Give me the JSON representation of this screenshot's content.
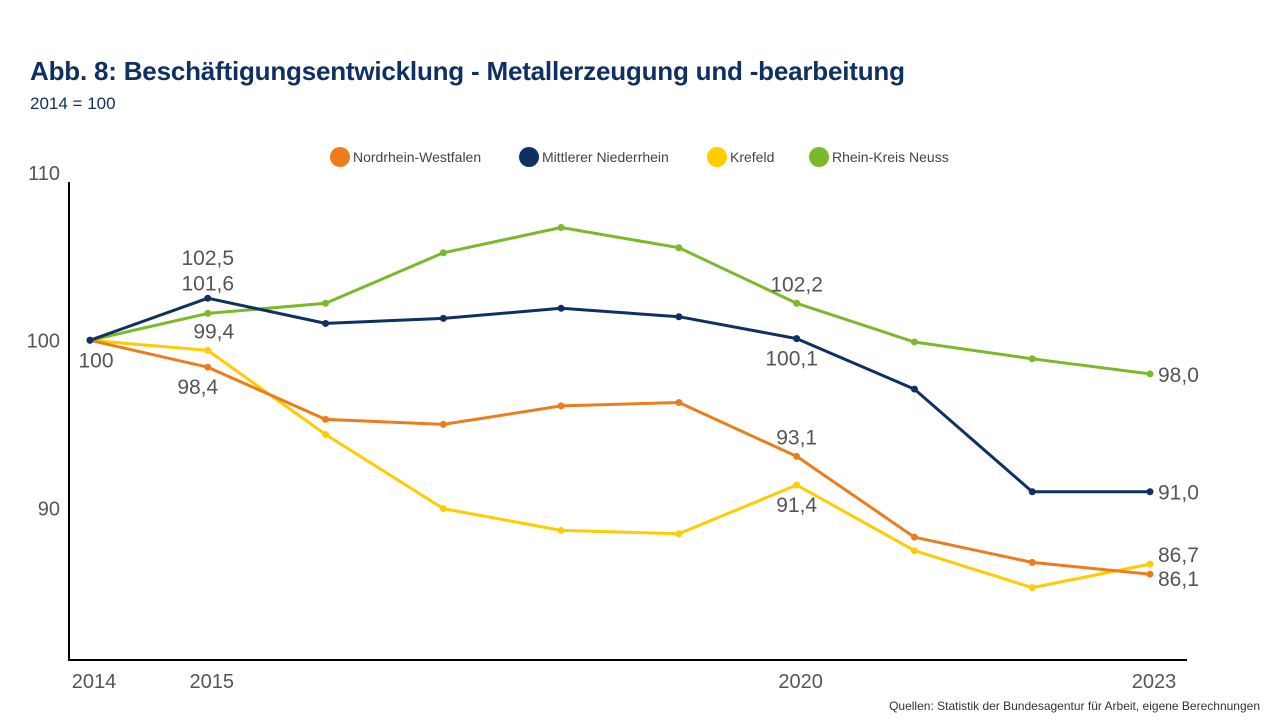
{
  "header": {
    "title": "Abb. 8: Beschäftigungsentwicklung - Metallerzeugung und -bearbeitung",
    "subtitle": "2014 = 100"
  },
  "footer": {
    "source": "Quellen: Statistik der Bundesagentur für Arbeit, eigene Berechnungen"
  },
  "chart_data": {
    "type": "line",
    "title": "Abb. 8: Beschäftigungsentwicklung - Metallerzeugung und -bearbeitung",
    "subtitle": "2014 = 100",
    "x": [
      2014,
      2015,
      2016,
      2017,
      2018,
      2019,
      2020,
      2021,
      2022,
      2023
    ],
    "x_tick_labels": [
      {
        "x": 2014,
        "label": "2014"
      },
      {
        "x": 2015,
        "label": "2015"
      },
      {
        "x": 2020,
        "label": "2020"
      },
      {
        "x": 2023,
        "label": "2023"
      }
    ],
    "y_tick_labels": [
      {
        "y": 90,
        "label": "90"
      },
      {
        "y": 100,
        "label": "100"
      },
      {
        "y": 110,
        "label": "110"
      }
    ],
    "ylim": [
      81,
      110
    ],
    "grid": false,
    "legend_position": "top-center",
    "series": [
      {
        "name": "Nordrhein-Westfalen",
        "color": "#ed7d1c",
        "values": [
          100,
          98.4,
          95.3,
          95.0,
          96.1,
          96.3,
          93.1,
          88.3,
          86.8,
          86.1
        ]
      },
      {
        "name": "Mittlerer Niederrhein",
        "color": "#0f3063",
        "values": [
          100,
          102.5,
          101.0,
          101.3,
          101.9,
          101.4,
          100.1,
          97.1,
          91.0,
          91.0
        ]
      },
      {
        "name": "Krefeld",
        "color": "#ffcc00",
        "values": [
          100,
          99.4,
          94.4,
          90.0,
          88.7,
          88.5,
          91.4,
          87.5,
          85.3,
          86.7
        ]
      },
      {
        "name": "Rhein-Kreis Neuss",
        "color": "#7ab929",
        "values": [
          100,
          101.6,
          102.2,
          105.2,
          106.7,
          105.5,
          102.2,
          99.9,
          98.9,
          98.0
        ]
      }
    ],
    "data_labels": [
      {
        "series": 0,
        "x": 2014,
        "text": "100",
        "pos": "below"
      },
      {
        "series": 1,
        "x": 2015,
        "text": "102,5",
        "pos": "above2"
      },
      {
        "series": 3,
        "x": 2015,
        "text": "101,6",
        "pos": "above1"
      },
      {
        "series": 2,
        "x": 2015,
        "text": "99,4",
        "pos": "above"
      },
      {
        "series": 0,
        "x": 2015,
        "text": "98,4",
        "pos": "below"
      },
      {
        "series": 3,
        "x": 2020,
        "text": "102,2",
        "pos": "above"
      },
      {
        "series": 1,
        "x": 2020,
        "text": "100,1",
        "pos": "below"
      },
      {
        "series": 0,
        "x": 2020,
        "text": "93,1",
        "pos": "above"
      },
      {
        "series": 2,
        "x": 2020,
        "text": "91,4",
        "pos": "below"
      },
      {
        "series": 3,
        "x": 2023,
        "text": "98,0",
        "pos": "right"
      },
      {
        "series": 1,
        "x": 2023,
        "text": "91,0",
        "pos": "right"
      },
      {
        "series": 2,
        "x": 2023,
        "text": "86,7",
        "pos": "right-up"
      },
      {
        "series": 0,
        "x": 2023,
        "text": "86,1",
        "pos": "right-down"
      }
    ]
  }
}
